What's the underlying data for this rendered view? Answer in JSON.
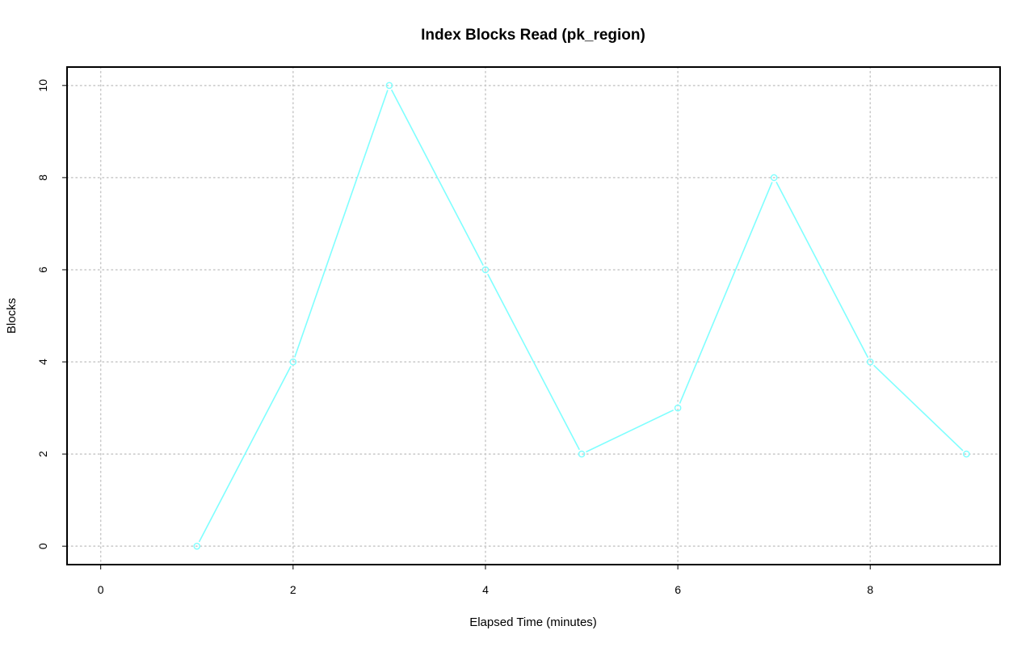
{
  "chart_data": {
    "type": "line",
    "title": "Index Blocks Read (pk_region)",
    "xlabel": "Elapsed Time (minutes)",
    "ylabel": "Blocks",
    "xlim": [
      -0.35,
      9.35
    ],
    "ylim": [
      -0.4,
      10.4
    ],
    "xticks": [
      0,
      2,
      4,
      6,
      8
    ],
    "yticks": [
      0,
      2,
      4,
      6,
      8,
      10
    ],
    "grid": true,
    "series": [
      {
        "color": "#7fffff",
        "x": [
          1,
          2,
          3,
          4,
          5,
          6,
          7,
          8,
          9
        ],
        "values": [
          0,
          4,
          10,
          6,
          2,
          3,
          8,
          4,
          2
        ]
      }
    ]
  }
}
